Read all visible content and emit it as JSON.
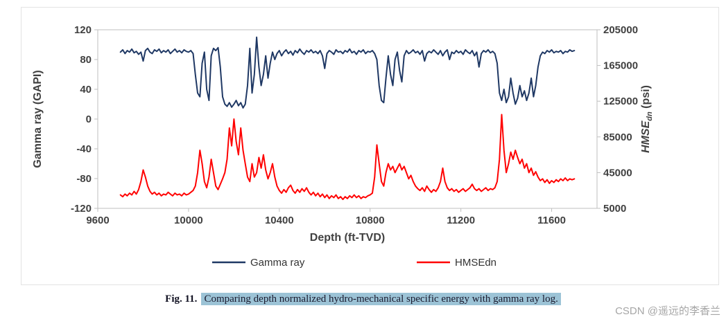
{
  "caption": {
    "fig_label": "Fig. 11.",
    "text": "Comparing depth normalized hydro-mechanical specific energy with gamma ray log.",
    "highlight_color": "#9cc3d6",
    "text_color": "#1a1a2e"
  },
  "watermark": {
    "text": "CSDN @遥远的李香兰",
    "color": "#a6a6a6"
  },
  "chart_data": {
    "type": "line",
    "title": "",
    "x_axis": {
      "label": "Depth (ft-TVD)",
      "ticks": [
        9600,
        10000,
        10400,
        10800,
        11200,
        11600
      ],
      "range": [
        9600,
        11800
      ]
    },
    "left_axis": {
      "label": "Gamma ray (GAPI)",
      "ticks": [
        120,
        80,
        40,
        0,
        -40,
        -80,
        -120
      ],
      "range": [
        -120,
        120
      ]
    },
    "right_axis": {
      "label_main": "HMSE",
      "label_sub": "dn",
      "label_unit": " (psi)",
      "ticks": [
        205000,
        165000,
        125000,
        85000,
        45000,
        5000
      ],
      "range": [
        5000,
        205000
      ]
    },
    "grid": false,
    "legend": {
      "position": "bottom",
      "items": [
        {
          "label": "Gamma ray",
          "color": "#1f3864"
        },
        {
          "label": "HMSEdn",
          "color": "#ff0000"
        }
      ]
    },
    "depths": [
      9700,
      9710,
      9720,
      9730,
      9740,
      9750,
      9760,
      9770,
      9780,
      9790,
      9800,
      9810,
      9820,
      9830,
      9840,
      9850,
      9860,
      9870,
      9880,
      9890,
      9900,
      9910,
      9920,
      9930,
      9940,
      9950,
      9960,
      9970,
      9980,
      9990,
      10000,
      10010,
      10020,
      10030,
      10040,
      10050,
      10060,
      10070,
      10080,
      10090,
      10100,
      10110,
      10120,
      10130,
      10140,
      10150,
      10160,
      10170,
      10180,
      10190,
      10200,
      10210,
      10220,
      10230,
      10240,
      10250,
      10260,
      10270,
      10280,
      10290,
      10300,
      10310,
      10320,
      10330,
      10340,
      10350,
      10360,
      10370,
      10380,
      10390,
      10400,
      10410,
      10420,
      10430,
      10440,
      10450,
      10460,
      10470,
      10480,
      10490,
      10500,
      10510,
      10520,
      10530,
      10540,
      10550,
      10560,
      10570,
      10580,
      10590,
      10600,
      10610,
      10620,
      10630,
      10640,
      10650,
      10660,
      10670,
      10680,
      10690,
      10700,
      10710,
      10720,
      10730,
      10740,
      10750,
      10760,
      10770,
      10780,
      10790,
      10800,
      10810,
      10820,
      10830,
      10840,
      10850,
      10860,
      10870,
      10880,
      10890,
      10900,
      10910,
      10920,
      10930,
      10940,
      10950,
      10960,
      10970,
      10980,
      10990,
      11000,
      11010,
      11020,
      11030,
      11040,
      11050,
      11060,
      11070,
      11080,
      11090,
      11100,
      11110,
      11120,
      11130,
      11140,
      11150,
      11160,
      11170,
      11180,
      11190,
      11200,
      11210,
      11220,
      11230,
      11240,
      11250,
      11260,
      11270,
      11280,
      11290,
      11300,
      11310,
      11320,
      11330,
      11340,
      11350,
      11360,
      11370,
      11380,
      11390,
      11400,
      11410,
      11420,
      11430,
      11440,
      11450,
      11460,
      11470,
      11480,
      11490,
      11500,
      11510,
      11520,
      11530,
      11540,
      11550,
      11560,
      11570,
      11580,
      11590,
      11600,
      11610,
      11620,
      11630,
      11640,
      11650,
      11660,
      11670,
      11680,
      11690,
      11700
    ],
    "series": [
      {
        "name": "Gamma ray",
        "axis": "left",
        "color": "#1f3864",
        "unit": "GAPI",
        "values": [
          90,
          93,
          88,
          92,
          90,
          94,
          89,
          91,
          87,
          90,
          78,
          92,
          95,
          90,
          88,
          93,
          91,
          94,
          89,
          92,
          90,
          93,
          88,
          91,
          94,
          90,
          92,
          89,
          93,
          91,
          90,
          92,
          88,
          60,
          35,
          30,
          75,
          90,
          40,
          25,
          85,
          95,
          92,
          96,
          70,
          30,
          20,
          17,
          22,
          16,
          20,
          25,
          18,
          22,
          15,
          20,
          45,
          95,
          35,
          60,
          110,
          70,
          45,
          60,
          85,
          55,
          75,
          90,
          80,
          88,
          92,
          85,
          90,
          93,
          88,
          91,
          86,
          92,
          89,
          94,
          90,
          87,
          92,
          90,
          93,
          89,
          91,
          88,
          92,
          85,
          68,
          88,
          92,
          90,
          87,
          93,
          90,
          91,
          88,
          92,
          90,
          94,
          89,
          91,
          87,
          92,
          90,
          93,
          88,
          91,
          90,
          92,
          88,
          80,
          45,
          25,
          22,
          55,
          85,
          60,
          45,
          80,
          90,
          65,
          50,
          85,
          92,
          88,
          90,
          93,
          89,
          91,
          87,
          92,
          78,
          88,
          91,
          89,
          93,
          90,
          87,
          92,
          85,
          90,
          93,
          80,
          90,
          88,
          92,
          89,
          91,
          87,
          93,
          90,
          88,
          92,
          85,
          90,
          70,
          88,
          92,
          90,
          93,
          89,
          91,
          88,
          75,
          35,
          25,
          40,
          22,
          30,
          55,
          35,
          20,
          28,
          45,
          30,
          38,
          25,
          35,
          55,
          30,
          45,
          70,
          85,
          90,
          88,
          92,
          90,
          93,
          89,
          91,
          90,
          92,
          88,
          91,
          90,
          93,
          91,
          92
        ]
      },
      {
        "name": "HMSEdn",
        "axis": "right",
        "color": "#ff0000",
        "unit": "psi",
        "values": [
          20000,
          18000,
          21000,
          19000,
          22000,
          20000,
          24000,
          21000,
          26000,
          35000,
          48000,
          40000,
          30000,
          24000,
          21000,
          23000,
          20000,
          22000,
          19000,
          21000,
          20000,
          23000,
          21000,
          19000,
          22000,
          20000,
          21000,
          19000,
          22000,
          20000,
          21000,
          23000,
          25000,
          30000,
          45000,
          70000,
          55000,
          35000,
          28000,
          40000,
          60000,
          45000,
          30000,
          26000,
          32000,
          38000,
          45000,
          60000,
          95000,
          75000,
          105000,
          80000,
          65000,
          95000,
          70000,
          55000,
          40000,
          35000,
          55000,
          40000,
          45000,
          62000,
          50000,
          65000,
          48000,
          38000,
          45000,
          55000,
          40000,
          30000,
          25000,
          22000,
          26000,
          23000,
          28000,
          31000,
          25000,
          22000,
          26000,
          23000,
          27000,
          24000,
          28000,
          23000,
          20000,
          23000,
          19000,
          22000,
          18000,
          21000,
          17000,
          20000,
          16000,
          19000,
          17000,
          20000,
          16000,
          18000,
          15000,
          18000,
          16000,
          19000,
          17000,
          20000,
          17000,
          19000,
          16000,
          18000,
          17000,
          19000,
          20000,
          22000,
          40000,
          76000,
          55000,
          35000,
          30000,
          45000,
          55000,
          48000,
          52000,
          45000,
          50000,
          55000,
          48000,
          52000,
          45000,
          38000,
          42000,
          35000,
          30000,
          27000,
          25000,
          28000,
          24000,
          30000,
          26000,
          23000,
          26000,
          24000,
          28000,
          35000,
          50000,
          35000,
          28000,
          25000,
          27000,
          24000,
          26000,
          23000,
          25000,
          27000,
          24000,
          26000,
          28000,
          32000,
          27000,
          25000,
          27000,
          24000,
          26000,
          28000,
          25000,
          27000,
          26000,
          28000,
          35000,
          60000,
          110000,
          70000,
          45000,
          55000,
          68000,
          60000,
          70000,
          62000,
          55000,
          60000,
          50000,
          55000,
          45000,
          50000,
          42000,
          46000,
          40000,
          36000,
          38000,
          34000,
          37000,
          33000,
          36000,
          34000,
          37000,
          35000,
          38000,
          36000,
          39000,
          36000,
          38000,
          37000,
          38000
        ]
      }
    ]
  }
}
